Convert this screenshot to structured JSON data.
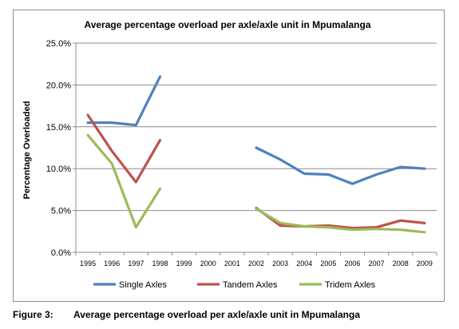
{
  "chart_data": {
    "type": "line",
    "title": "Average percentage overload per axle/axle unit in Mpumalanga",
    "xlabel": "",
    "ylabel": "Percentage Overloaded",
    "categories": [
      "1995",
      "1996",
      "1997",
      "1998",
      "1999",
      "2000",
      "2001",
      "2002",
      "2003",
      "2004",
      "2005",
      "2006",
      "2007",
      "2008",
      "2009"
    ],
    "ylim": [
      0,
      25
    ],
    "y_ticks": [
      "0.0%",
      "5.0%",
      "10.0%",
      "15.0%",
      "20.0%",
      "25.0%"
    ],
    "grid": true,
    "legend_position": "bottom",
    "series": [
      {
        "name": "Single Axles",
        "color": "#4f81bd",
        "values": [
          15.5,
          15.5,
          15.2,
          21.0,
          null,
          null,
          null,
          12.5,
          11.1,
          9.4,
          9.3,
          8.2,
          9.3,
          10.2,
          10.0
        ]
      },
      {
        "name": "Tandem Axles",
        "color": "#c0504d",
        "values": [
          16.4,
          12.1,
          8.4,
          13.4,
          null,
          null,
          null,
          5.3,
          3.2,
          3.1,
          3.2,
          2.9,
          3.0,
          3.8,
          3.5
        ]
      },
      {
        "name": "Tridem Axles",
        "color": "#9bbb59",
        "values": [
          14.0,
          10.6,
          3.0,
          7.6,
          null,
          null,
          null,
          5.2,
          3.5,
          3.1,
          3.0,
          2.7,
          2.8,
          2.7,
          2.4
        ]
      }
    ]
  },
  "caption": {
    "label": "Figure 3:",
    "text": "Average percentage overload per axle/axle unit in Mpumalanga"
  }
}
